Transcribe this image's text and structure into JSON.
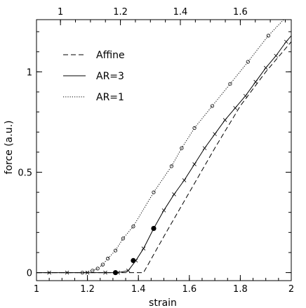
{
  "chart_data": {
    "type": "line",
    "xlabel": "strain",
    "ylabel": "force (a.u.)",
    "xlim": [
      1,
      2
    ],
    "ylim": [
      -0.04,
      1.26
    ],
    "xticks": [
      1,
      1.2,
      1.4,
      1.6,
      1.8,
      2
    ],
    "yticks": [
      0,
      0.5,
      1
    ],
    "top_axis": {
      "xlim": [
        0.92,
        1.77
      ],
      "ticks": [
        1,
        1.2,
        1.4,
        1.6
      ]
    },
    "legend_position": "top-left",
    "series": [
      {
        "name": "Affine",
        "style": "dashed",
        "marker": "none",
        "x": [
          1.0,
          1.42,
          1.46,
          1.5,
          1.6,
          1.7,
          1.8,
          1.9,
          2.0
        ],
        "y": [
          0.0,
          0.0,
          0.09,
          0.18,
          0.4,
          0.62,
          0.83,
          1.0,
          1.15
        ]
      },
      {
        "name": "AR=3",
        "style": "solid",
        "marker": "x",
        "x": [
          1.0,
          1.05,
          1.12,
          1.2,
          1.27,
          1.32,
          1.36,
          1.39,
          1.42,
          1.46,
          1.5,
          1.54,
          1.58,
          1.62,
          1.66,
          1.7,
          1.74,
          1.78,
          1.82,
          1.86,
          1.9,
          1.94,
          1.98,
          2.0
        ],
        "y": [
          0.0,
          0.0,
          0.0,
          0.0,
          0.0,
          0.0,
          0.01,
          0.06,
          0.12,
          0.22,
          0.31,
          0.39,
          0.46,
          0.54,
          0.62,
          0.69,
          0.76,
          0.82,
          0.88,
          0.95,
          1.02,
          1.08,
          1.15,
          1.18
        ]
      },
      {
        "name": "AR=1",
        "style": "dotted",
        "marker": "o",
        "x": [
          1.0,
          1.18,
          1.22,
          1.24,
          1.26,
          1.28,
          1.31,
          1.34,
          1.38,
          1.46,
          1.53,
          1.57,
          1.62,
          1.69,
          1.76,
          1.83,
          1.91,
          2.0
        ],
        "y": [
          0.0,
          0.0,
          0.01,
          0.02,
          0.04,
          0.07,
          0.11,
          0.17,
          0.23,
          0.4,
          0.53,
          0.62,
          0.72,
          0.83,
          0.94,
          1.05,
          1.18,
          1.3
        ]
      }
    ],
    "highlighted_points": {
      "x": [
        1.31,
        1.38,
        1.46
      ],
      "y": [
        0.0,
        0.06,
        0.22
      ]
    }
  }
}
